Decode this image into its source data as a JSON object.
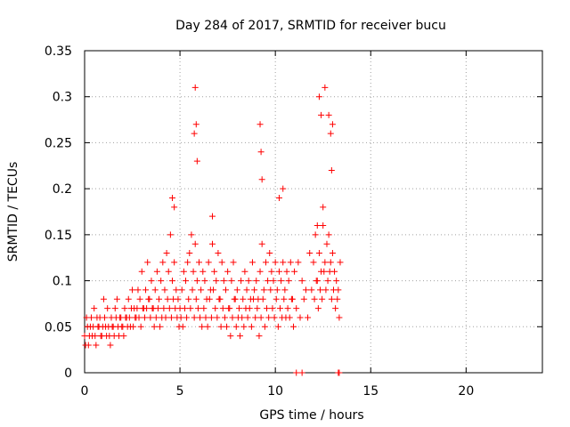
{
  "chart_data": {
    "type": "scatter",
    "title": "Day 284 of 2017, SRMTID for receiver bucu",
    "xlabel": "GPS time / hours",
    "ylabel": "SRMTID / TECUs",
    "xlim": [
      0,
      24
    ],
    "ylim": [
      0,
      0.35
    ],
    "x_ticks": [
      0,
      5,
      10,
      15,
      20
    ],
    "x_tick_labels": [
      "0",
      "5",
      "10",
      "15",
      "20"
    ],
    "y_ticks": [
      0,
      0.05,
      0.1,
      0.15,
      0.2,
      0.25,
      0.3,
      0.35
    ],
    "y_tick_labels": [
      "0",
      "0.05",
      "0.1",
      "0.15",
      "0.2",
      "0.25",
      "0.3",
      "0.35"
    ],
    "grid": true,
    "marker": "plus",
    "color": "#ff0000",
    "series": [
      {
        "name": "SRMTID",
        "x": [
          0.0,
          0.1,
          0.2,
          0.3,
          0.4,
          0.5,
          0.6,
          0.7,
          0.8,
          0.9,
          1.0,
          1.1,
          1.2,
          1.3,
          1.4,
          1.5,
          1.6,
          1.7,
          1.8,
          1.9,
          2.0,
          2.1,
          2.2,
          2.3,
          2.4,
          2.5,
          2.6,
          2.7,
          2.8,
          2.9,
          3.0,
          3.1,
          3.2,
          3.3,
          3.4,
          3.5,
          3.6,
          3.7,
          3.8,
          3.9,
          4.0,
          4.1,
          4.2,
          4.3,
          4.4,
          4.5,
          4.6,
          4.7,
          4.8,
          4.9,
          5.0,
          5.1,
          5.2,
          5.3,
          5.4,
          5.5,
          5.6,
          5.7,
          5.8,
          5.9,
          6.0,
          6.1,
          6.2,
          6.3,
          6.4,
          6.5,
          6.6,
          6.7,
          6.8,
          6.9,
          7.0,
          7.1,
          7.2,
          7.3,
          7.4,
          7.5,
          7.6,
          7.7,
          7.8,
          7.9,
          8.0,
          8.1,
          8.2,
          8.3,
          8.4,
          8.5,
          8.6,
          8.7,
          8.8,
          8.9,
          9.0,
          9.1,
          9.2,
          9.3,
          9.4,
          9.5,
          9.6,
          9.7,
          9.8,
          9.9,
          10.0,
          10.1,
          10.2,
          10.3,
          10.4,
          10.5,
          10.6,
          10.7,
          10.8,
          10.9,
          11.0,
          11.2,
          11.4,
          11.6,
          11.8,
          12.0,
          12.1,
          12.2,
          12.3,
          12.4,
          12.5,
          12.6,
          12.7,
          12.8,
          12.9,
          13.0,
          13.1,
          13.2,
          13.3,
          13.4,
          0.05,
          0.15,
          0.25,
          0.35,
          0.45,
          0.55,
          0.65,
          0.75,
          0.85,
          0.95,
          1.05,
          1.15,
          1.25,
          1.35,
          1.45,
          1.55,
          1.65,
          1.75,
          1.85,
          1.95,
          2.05,
          2.15,
          2.25,
          2.35,
          2.45,
          2.55,
          2.65,
          2.75,
          2.85,
          2.95,
          3.05,
          3.15,
          3.25,
          3.35,
          3.45,
          3.55,
          3.65,
          3.75,
          3.85,
          3.95,
          4.05,
          4.15,
          4.25,
          4.35,
          4.45,
          4.55,
          4.65,
          4.75,
          4.85,
          4.95,
          5.05,
          5.15,
          5.25,
          5.35,
          5.45,
          5.55,
          5.65,
          5.75,
          5.85,
          5.95,
          6.05,
          6.15,
          6.25,
          6.35,
          6.45,
          6.55,
          6.65,
          6.75,
          6.85,
          6.95,
          7.05,
          7.15,
          7.25,
          7.35,
          7.45,
          7.55,
          7.65,
          7.75,
          7.85,
          7.95,
          8.05,
          8.15,
          8.25,
          8.35,
          8.45,
          8.55,
          8.65,
          8.75,
          8.85,
          8.95,
          9.05,
          9.15,
          9.25,
          9.35,
          9.45,
          9.55,
          9.65,
          9.75,
          9.85,
          9.95,
          10.05,
          10.15,
          10.25,
          10.35,
          10.45,
          10.55,
          10.65,
          10.75,
          10.85,
          10.95,
          11.1,
          11.3,
          11.5,
          11.7,
          11.9,
          12.05,
          12.15,
          12.25,
          12.35,
          12.45,
          12.55,
          12.65,
          12.75,
          12.85,
          12.95,
          13.05,
          13.15,
          13.25,
          13.35,
          5.8,
          5.85,
          5.75,
          5.9,
          9.2,
          9.25,
          9.3,
          12.3,
          12.4,
          12.6,
          12.8,
          12.9,
          12.95,
          13.0,
          11.1,
          11.4,
          13.3,
          13.35,
          4.6,
          4.7,
          6.7,
          10.2,
          10.4,
          12.2,
          12.5
        ],
        "y": [
          0.04,
          0.06,
          0.03,
          0.05,
          0.04,
          0.07,
          0.03,
          0.05,
          0.06,
          0.04,
          0.08,
          0.05,
          0.07,
          0.04,
          0.06,
          0.05,
          0.07,
          0.08,
          0.04,
          0.06,
          0.05,
          0.07,
          0.06,
          0.08,
          0.05,
          0.09,
          0.07,
          0.06,
          0.09,
          0.08,
          0.11,
          0.07,
          0.09,
          0.12,
          0.08,
          0.1,
          0.07,
          0.09,
          0.11,
          0.08,
          0.1,
          0.12,
          0.09,
          0.13,
          0.11,
          0.15,
          0.1,
          0.12,
          0.09,
          0.08,
          0.07,
          0.09,
          0.11,
          0.1,
          0.12,
          0.13,
          0.15,
          0.11,
          0.14,
          0.1,
          0.12,
          0.09,
          0.11,
          0.1,
          0.08,
          0.12,
          0.09,
          0.14,
          0.11,
          0.1,
          0.13,
          0.08,
          0.12,
          0.1,
          0.09,
          0.11,
          0.07,
          0.1,
          0.12,
          0.08,
          0.09,
          0.07,
          0.1,
          0.08,
          0.11,
          0.09,
          0.1,
          0.08,
          0.12,
          0.09,
          0.1,
          0.08,
          0.11,
          0.14,
          0.09,
          0.12,
          0.1,
          0.13,
          0.11,
          0.1,
          0.12,
          0.09,
          0.11,
          0.1,
          0.12,
          0.09,
          0.11,
          0.1,
          0.12,
          0.08,
          0.11,
          0.12,
          0.1,
          0.09,
          0.13,
          0.12,
          0.15,
          0.1,
          0.13,
          0.11,
          0.16,
          0.12,
          0.14,
          0.15,
          0.12,
          0.13,
          0.11,
          0.1,
          0.09,
          0.12,
          0.03,
          0.05,
          0.04,
          0.06,
          0.05,
          0.04,
          0.06,
          0.05,
          0.04,
          0.05,
          0.06,
          0.04,
          0.05,
          0.03,
          0.05,
          0.04,
          0.06,
          0.05,
          0.06,
          0.05,
          0.04,
          0.06,
          0.05,
          0.06,
          0.07,
          0.05,
          0.06,
          0.07,
          0.06,
          0.05,
          0.07,
          0.06,
          0.07,
          0.08,
          0.06,
          0.07,
          0.05,
          0.06,
          0.07,
          0.05,
          0.06,
          0.07,
          0.06,
          0.08,
          0.07,
          0.06,
          0.08,
          0.07,
          0.06,
          0.05,
          0.06,
          0.05,
          0.07,
          0.06,
          0.08,
          0.07,
          0.09,
          0.06,
          0.08,
          0.07,
          0.06,
          0.05,
          0.07,
          0.06,
          0.05,
          0.08,
          0.06,
          0.09,
          0.07,
          0.06,
          0.08,
          0.05,
          0.07,
          0.06,
          0.05,
          0.07,
          0.04,
          0.06,
          0.08,
          0.05,
          0.06,
          0.04,
          0.06,
          0.05,
          0.07,
          0.06,
          0.07,
          0.05,
          0.08,
          0.06,
          0.07,
          0.04,
          0.06,
          0.08,
          0.05,
          0.07,
          0.06,
          0.09,
          0.07,
          0.06,
          0.08,
          0.05,
          0.07,
          0.06,
          0.08,
          0.06,
          0.07,
          0.06,
          0.08,
          0.05,
          0.07,
          0.06,
          0.08,
          0.06,
          0.09,
          0.08,
          0.1,
          0.07,
          0.09,
          0.08,
          0.11,
          0.09,
          0.1,
          0.11,
          0.08,
          0.09,
          0.07,
          0.08,
          0.06,
          0.31,
          0.27,
          0.26,
          0.23,
          0.27,
          0.24,
          0.21,
          0.3,
          0.28,
          0.31,
          0.28,
          0.26,
          0.22,
          0.27,
          0.0,
          0.0,
          0.0,
          0.0,
          0.19,
          0.18,
          0.17,
          0.19,
          0.2,
          0.16,
          0.18
        ]
      }
    ]
  }
}
